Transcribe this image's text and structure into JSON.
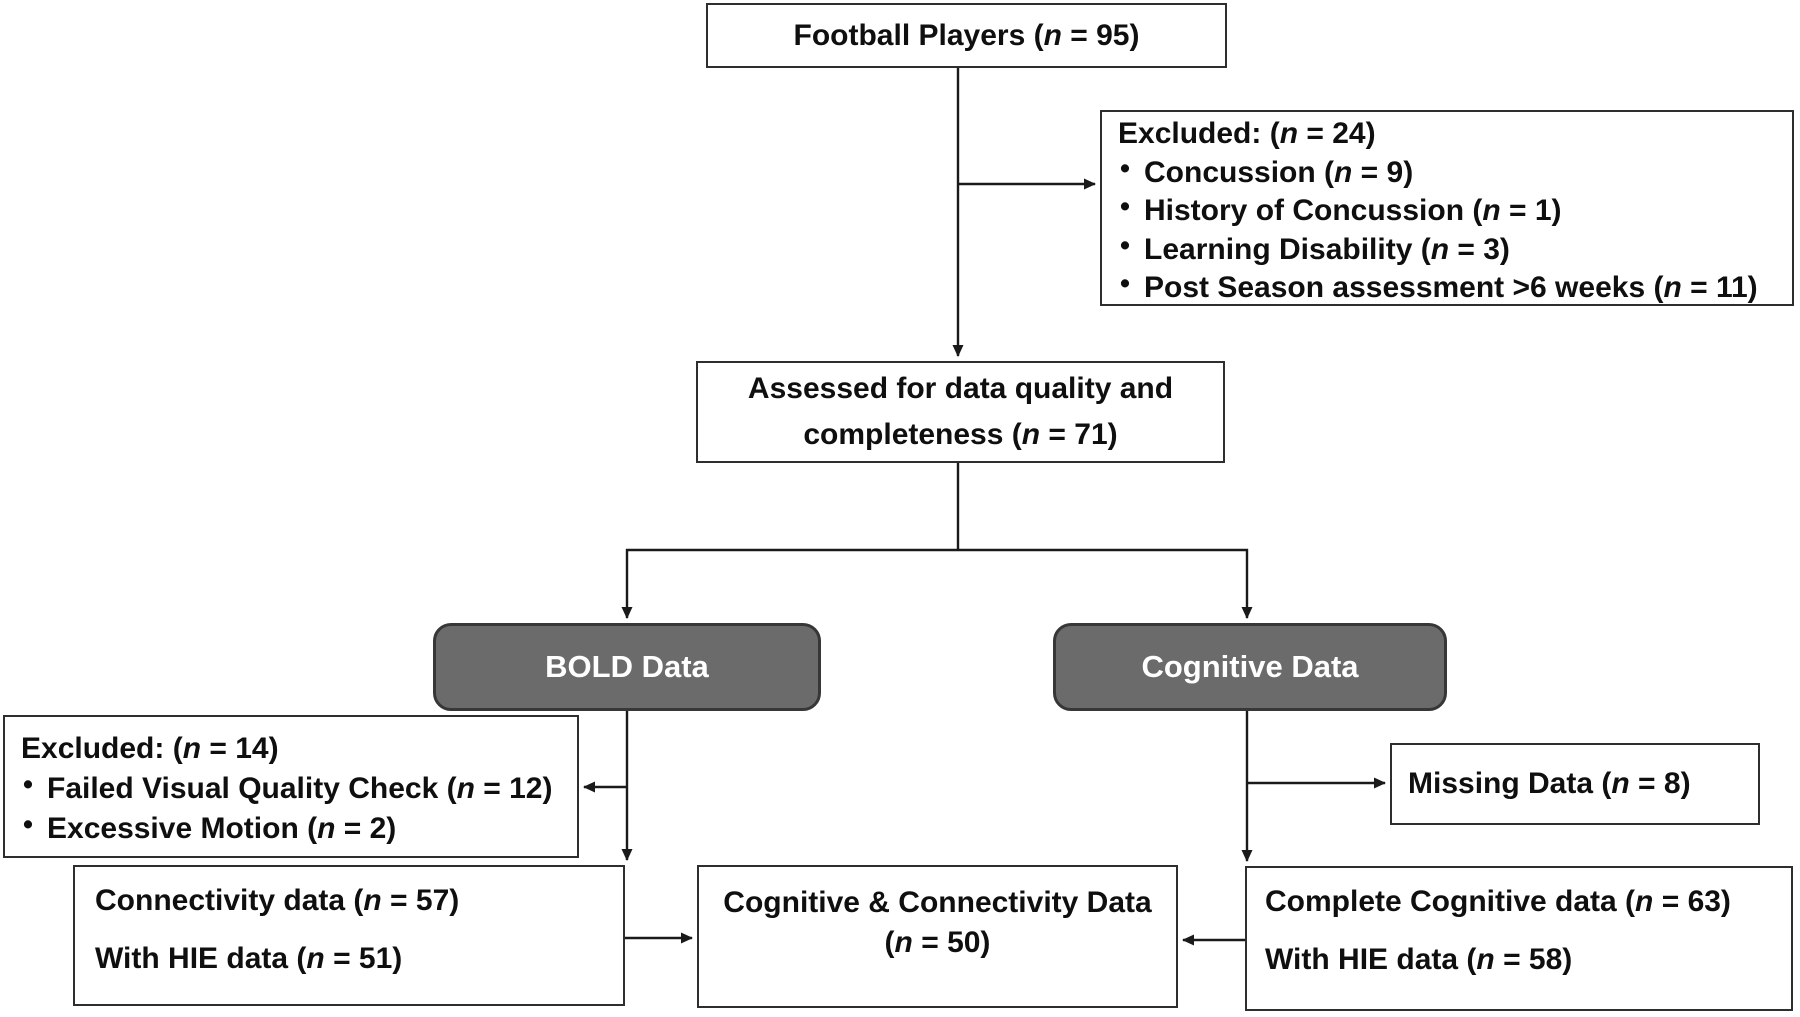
{
  "nodes": {
    "football_players": {
      "label": "Football Players (n = 95)"
    },
    "excluded_initial": {
      "title": "Excluded: (n = 24)",
      "items": [
        "Concussion (n = 9)",
        "History of Concussion (n = 1)",
        "Learning Disability (n = 3)",
        "Post Season assessment >6 weeks (n = 11)"
      ]
    },
    "assessed": {
      "line1": "Assessed for data quality and",
      "line2": "completeness (n = 71)"
    },
    "bold_data": {
      "label": "BOLD Data"
    },
    "cognitive_data": {
      "label": "Cognitive Data"
    },
    "excluded_bold": {
      "title": "Excluded: (n = 14)",
      "items": [
        "Failed Visual Quality Check (n = 12)",
        "Excessive Motion (n = 2)"
      ]
    },
    "missing_data": {
      "label": "Missing Data (n = 8)"
    },
    "connectivity": {
      "line1": "Connectivity data (n = 57)",
      "line2": "With HIE data (n = 51)"
    },
    "combined": {
      "line1": "Cognitive & Connectivity Data",
      "line2": "(n = 50)"
    },
    "complete_cognitive": {
      "line1": "Complete Cognitive data (n = 63)",
      "line2": "With HIE data (n = 58)"
    }
  },
  "colors": {
    "background": "#ffffff",
    "box_border": "#2e2e2e",
    "branch_fill": "#6b6b6b",
    "branch_border": "#373737",
    "branch_text": "#ffffff",
    "arrow": "#1a1a1a",
    "text": "#0f0f0f"
  }
}
